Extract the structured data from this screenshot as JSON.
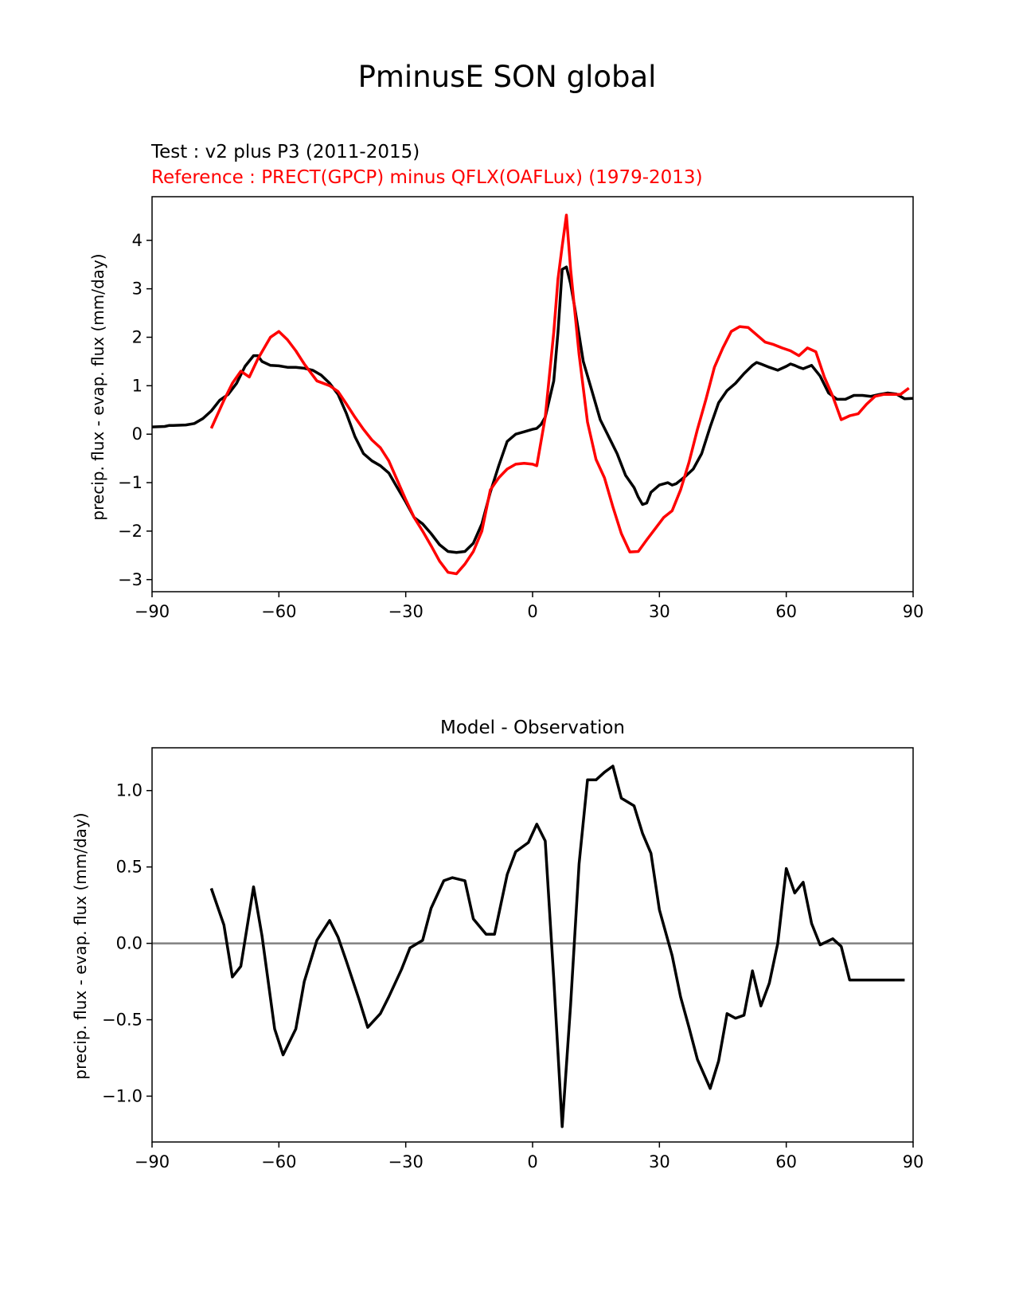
{
  "figure": {
    "suptitle": "PminusE SON global"
  },
  "chart_data": [
    {
      "type": "line",
      "title_left_test": "Test : v2 plus P3 (2011-2015)",
      "title_left_reference": "Reference : PRECT(GPCP) minus QFLX(OAFLux) (1979-2013)",
      "title_left_reference_color": "#ff0000",
      "xlabel": "",
      "ylabel": "precip. flux - evap. flux (mm/day)",
      "xlim": [
        -90,
        90
      ],
      "ylim": [
        -3.25,
        4.9
      ],
      "xticks": [
        -90,
        -60,
        -30,
        0,
        30,
        60,
        90
      ],
      "xtick_labels": [
        "−90",
        "−60",
        "−30",
        "0",
        "30",
        "60",
        "90"
      ],
      "yticks": [
        -3,
        -2,
        -1,
        0,
        1,
        2,
        3,
        4
      ],
      "ytick_labels": [
        "−3",
        "−2",
        "−1",
        "0",
        "1",
        "2",
        "3",
        "4"
      ],
      "grid": false,
      "series": [
        {
          "color": "#000000",
          "x": [
            -90,
            -87,
            -86,
            -85,
            -82,
            -80,
            -78,
            -76,
            -74,
            -72,
            -70,
            -68,
            -66,
            -65,
            -64,
            -62,
            -60,
            -58,
            -56,
            -54,
            -52,
            -50,
            -48,
            -46,
            -44,
            -42,
            -40,
            -38,
            -36,
            -34,
            -32,
            -30,
            -28,
            -26,
            -24,
            -22,
            -20,
            -18,
            -16,
            -14,
            -12,
            -10,
            -8,
            -6,
            -4,
            -2,
            0,
            1,
            2,
            3,
            5,
            6,
            7,
            8,
            9,
            10,
            12,
            14,
            16,
            18,
            20,
            22,
            24,
            25,
            26,
            27,
            28,
            30,
            32,
            33,
            34,
            36,
            38,
            40,
            42,
            44,
            46,
            48,
            50,
            52,
            53,
            54,
            56,
            58,
            60,
            61,
            62,
            63,
            64,
            66,
            68,
            70,
            72,
            74,
            76,
            78,
            80,
            82,
            84,
            86,
            88,
            90
          ],
          "y": [
            0.15,
            0.16,
            0.18,
            0.18,
            0.19,
            0.22,
            0.32,
            0.48,
            0.7,
            0.82,
            1.05,
            1.4,
            1.62,
            1.62,
            1.5,
            1.42,
            1.41,
            1.38,
            1.38,
            1.36,
            1.32,
            1.22,
            1.05,
            0.82,
            0.42,
            -0.05,
            -0.4,
            -0.55,
            -0.65,
            -0.8,
            -1.1,
            -1.4,
            -1.72,
            -1.85,
            -2.05,
            -2.28,
            -2.42,
            -2.44,
            -2.42,
            -2.25,
            -1.85,
            -1.2,
            -0.65,
            -0.15,
            0.0,
            0.05,
            0.1,
            0.12,
            0.2,
            0.35,
            1.1,
            2.1,
            3.4,
            3.45,
            3.1,
            2.6,
            1.5,
            0.9,
            0.3,
            -0.05,
            -0.4,
            -0.85,
            -1.1,
            -1.3,
            -1.45,
            -1.42,
            -1.2,
            -1.05,
            -1.0,
            -1.05,
            -1.02,
            -0.88,
            -0.72,
            -0.4,
            0.15,
            0.65,
            0.9,
            1.05,
            1.25,
            1.42,
            1.48,
            1.45,
            1.38,
            1.32,
            1.4,
            1.45,
            1.42,
            1.38,
            1.35,
            1.42,
            1.2,
            0.85,
            0.72,
            0.72,
            0.8,
            0.8,
            0.78,
            0.82,
            0.85,
            0.83,
            0.73,
            0.74
          ],
          "stroke_width": 3.5
        },
        {
          "color": "#ff0000",
          "x": [
            -76,
            -73,
            -71,
            -69,
            -67,
            -65,
            -62,
            -60,
            -58,
            -56,
            -54,
            -51,
            -48,
            -46,
            -44,
            -42,
            -40,
            -38,
            -36,
            -34,
            -32,
            -30,
            -28,
            -26,
            -24,
            -22,
            -20,
            -18,
            -16,
            -14,
            -12,
            -10,
            -8,
            -6,
            -4,
            -2,
            0,
            1,
            3,
            5,
            6,
            7,
            8,
            9,
            11,
            13,
            15,
            17,
            19,
            21,
            23,
            25,
            27,
            29,
            31,
            33,
            35,
            37,
            39,
            41,
            43,
            45,
            47,
            49,
            51,
            53,
            55,
            57,
            59,
            61,
            63,
            65,
            67,
            69,
            71,
            73,
            75,
            77,
            79,
            81,
            83,
            85,
            87,
            89
          ],
          "y": [
            0.12,
            0.7,
            1.05,
            1.3,
            1.18,
            1.55,
            2.0,
            2.12,
            1.95,
            1.72,
            1.45,
            1.1,
            1.0,
            0.88,
            0.62,
            0.35,
            0.1,
            -0.12,
            -0.28,
            -0.55,
            -0.95,
            -1.35,
            -1.72,
            -2.0,
            -2.3,
            -2.62,
            -2.85,
            -2.88,
            -2.68,
            -2.42,
            -2.0,
            -1.15,
            -0.9,
            -0.72,
            -0.62,
            -0.6,
            -0.62,
            -0.65,
            0.35,
            2.1,
            3.2,
            3.88,
            4.52,
            3.4,
            1.65,
            0.25,
            -0.52,
            -0.9,
            -1.5,
            -2.05,
            -2.43,
            -2.42,
            -2.18,
            -1.95,
            -1.72,
            -1.58,
            -1.15,
            -0.58,
            0.1,
            0.72,
            1.38,
            1.78,
            2.12,
            2.22,
            2.2,
            2.05,
            1.9,
            1.85,
            1.78,
            1.72,
            1.62,
            1.78,
            1.7,
            1.18,
            0.78,
            0.3,
            0.38,
            0.42,
            0.62,
            0.78,
            0.82,
            0.82,
            0.82,
            0.95
          ],
          "stroke_width": 3.5
        }
      ]
    },
    {
      "type": "line",
      "title": "Model - Observation",
      "xlabel": "",
      "ylabel": "precip. flux - evap. flux (mm/day)",
      "xlim": [
        -90,
        90
      ],
      "ylim": [
        -1.3,
        1.28
      ],
      "xticks": [
        -90,
        -60,
        -30,
        0,
        30,
        60,
        90
      ],
      "xtick_labels": [
        "−90",
        "−60",
        "−30",
        "0",
        "30",
        "60",
        "90"
      ],
      "yticks": [
        -1.0,
        -0.5,
        0.0,
        0.5,
        1.0
      ],
      "ytick_labels": [
        "−1.0",
        "−0.5",
        "0.0",
        "0.5",
        "1.0"
      ],
      "grid": false,
      "reference_line": {
        "y": 0,
        "color": "#808080"
      },
      "series": [
        {
          "color": "#000000",
          "x": [
            -76,
            -73,
            -71,
            -69,
            -66,
            -64,
            -61,
            -59,
            -56,
            -54,
            -51,
            -48,
            -46,
            -44,
            -41,
            -39,
            -36,
            -34,
            -31,
            -29,
            -26,
            -24,
            -21,
            -19,
            -16,
            -14,
            -11,
            -9,
            -6,
            -4,
            -1,
            1,
            3,
            5,
            7,
            9,
            11,
            13,
            15,
            17,
            19,
            21,
            24,
            26,
            28,
            30,
            33,
            35,
            37,
            39,
            42,
            44,
            46,
            48,
            50,
            52,
            54,
            56,
            58,
            60,
            62,
            64,
            66,
            68,
            71,
            73,
            75,
            77,
            79,
            81,
            83,
            85,
            88
          ],
          "y": [
            0.36,
            0.12,
            -0.22,
            -0.15,
            0.37,
            0.05,
            -0.56,
            -0.73,
            -0.56,
            -0.25,
            0.02,
            0.15,
            0.04,
            -0.12,
            -0.37,
            -0.55,
            -0.46,
            -0.35,
            -0.17,
            -0.03,
            0.02,
            0.23,
            0.41,
            0.43,
            0.41,
            0.16,
            0.06,
            0.06,
            0.45,
            0.6,
            0.66,
            0.78,
            0.67,
            -0.23,
            -1.2,
            -0.4,
            0.52,
            1.07,
            1.07,
            1.12,
            1.16,
            0.95,
            0.9,
            0.72,
            0.59,
            0.22,
            -0.08,
            -0.35,
            -0.55,
            -0.76,
            -0.95,
            -0.77,
            -0.46,
            -0.49,
            -0.47,
            -0.18,
            -0.41,
            -0.26,
            0.0,
            0.49,
            0.33,
            0.4,
            0.13,
            -0.01,
            0.03,
            -0.02,
            -0.24,
            -0.24,
            -0.24,
            -0.24,
            -0.24,
            -0.24,
            -0.24
          ],
          "stroke_width": 3.5
        }
      ]
    }
  ]
}
